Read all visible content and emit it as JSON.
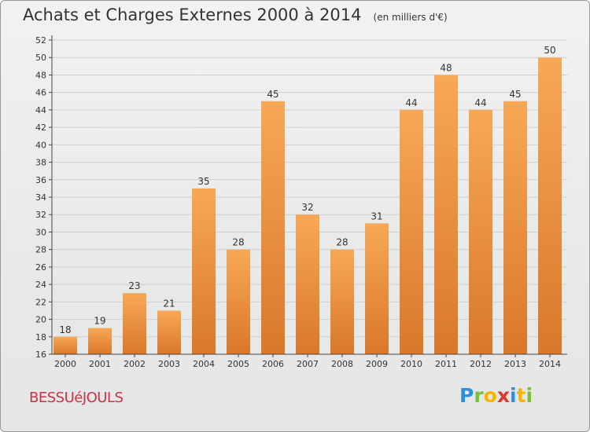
{
  "header": {
    "title": "Achats et Charges Externes 2000 à 2014",
    "unit": "(en milliers d'€)"
  },
  "footer": {
    "city": "BESSUéJOULS",
    "logo_letters": [
      "P",
      "r",
      "o",
      "x",
      "i",
      "t",
      "i"
    ],
    "logo_colors": [
      "#2f8fd6",
      "#7cbf3a",
      "#f7b500",
      "#e0392b",
      "#2f8fd6",
      "#f7b500",
      "#7cbf3a"
    ]
  },
  "colors": {
    "bar_light": "#f7a856",
    "bar_dark": "#d9782a",
    "grid": "#cfcfcf",
    "axis": "#444444"
  },
  "chart_data": {
    "type": "bar",
    "categories": [
      "2000",
      "2001",
      "2002",
      "2003",
      "2004",
      "2005",
      "2006",
      "2007",
      "2008",
      "2009",
      "2010",
      "2011",
      "2012",
      "2013",
      "2014"
    ],
    "values": [
      18,
      19,
      23,
      21,
      35,
      28,
      45,
      32,
      28,
      31,
      44,
      48,
      44,
      45,
      50
    ],
    "title": "Achats et Charges Externes 2000 à 2014",
    "ylim": [
      16,
      52
    ],
    "yticks": [
      16,
      18,
      20,
      22,
      24,
      26,
      28,
      30,
      32,
      34,
      36,
      38,
      40,
      42,
      44,
      46,
      48,
      50,
      52
    ],
    "grid": true
  }
}
